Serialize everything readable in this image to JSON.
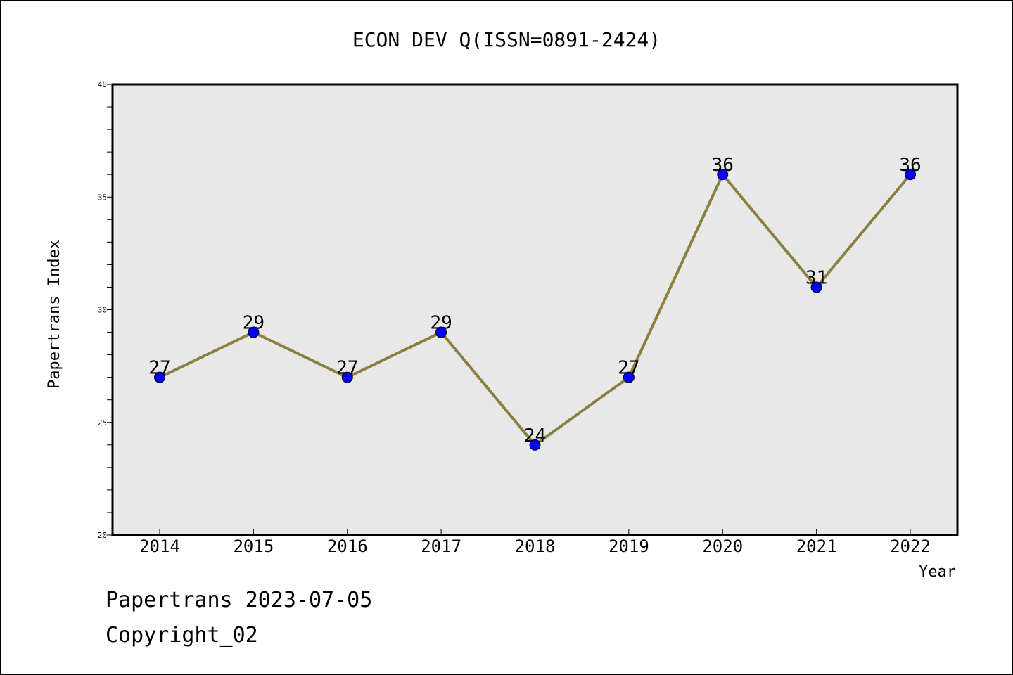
{
  "chart_data": {
    "type": "line",
    "title": "ECON DEV Q(ISSN=0891-2424)",
    "xlabel": "Year",
    "ylabel": "Papertrans Index",
    "categories": [
      "2014",
      "2015",
      "2016",
      "2017",
      "2018",
      "2019",
      "2020",
      "2021",
      "2022"
    ],
    "series": [
      {
        "values": [
          27,
          29,
          27,
          29,
          24,
          27,
          36,
          31,
          36
        ]
      }
    ],
    "ylim": [
      20,
      40
    ],
    "yticks": [
      20,
      25,
      30,
      35,
      40
    ],
    "grid": false,
    "colors": {
      "line": "#8b8040",
      "marker": "#0000ff",
      "plot_bg": "#e8e8e8"
    }
  },
  "footer": {
    "line1": "Papertrans 2023-07-05",
    "line2": "Copyright_02"
  }
}
